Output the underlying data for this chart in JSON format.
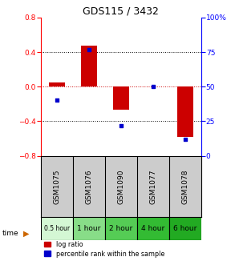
{
  "title": "GDS115 / 3432",
  "samples": [
    "GSM1075",
    "GSM1076",
    "GSM1090",
    "GSM1077",
    "GSM1078"
  ],
  "time_labels": [
    "0.5 hour",
    "1 hour",
    "2 hour",
    "4 hour",
    "6 hour"
  ],
  "time_colors": [
    "#d4f7d4",
    "#88dd88",
    "#55cc55",
    "#33bb33",
    "#22aa22"
  ],
  "log_ratios": [
    0.05,
    0.47,
    -0.27,
    0.0,
    -0.58
  ],
  "percentile_ranks": [
    40,
    77,
    22,
    50,
    12
  ],
  "ylim_left": [
    -0.8,
    0.8
  ],
  "ylim_right": [
    0,
    100
  ],
  "yticks_left": [
    -0.8,
    -0.4,
    0.0,
    0.4,
    0.8
  ],
  "yticks_right": [
    0,
    25,
    50,
    75,
    100
  ],
  "bar_color": "#cc0000",
  "dot_color": "#0000cc",
  "zero_line_color": "#cc0000",
  "bar_width": 0.5,
  "background_color": "#ffffff",
  "sample_bg": "#cccccc"
}
